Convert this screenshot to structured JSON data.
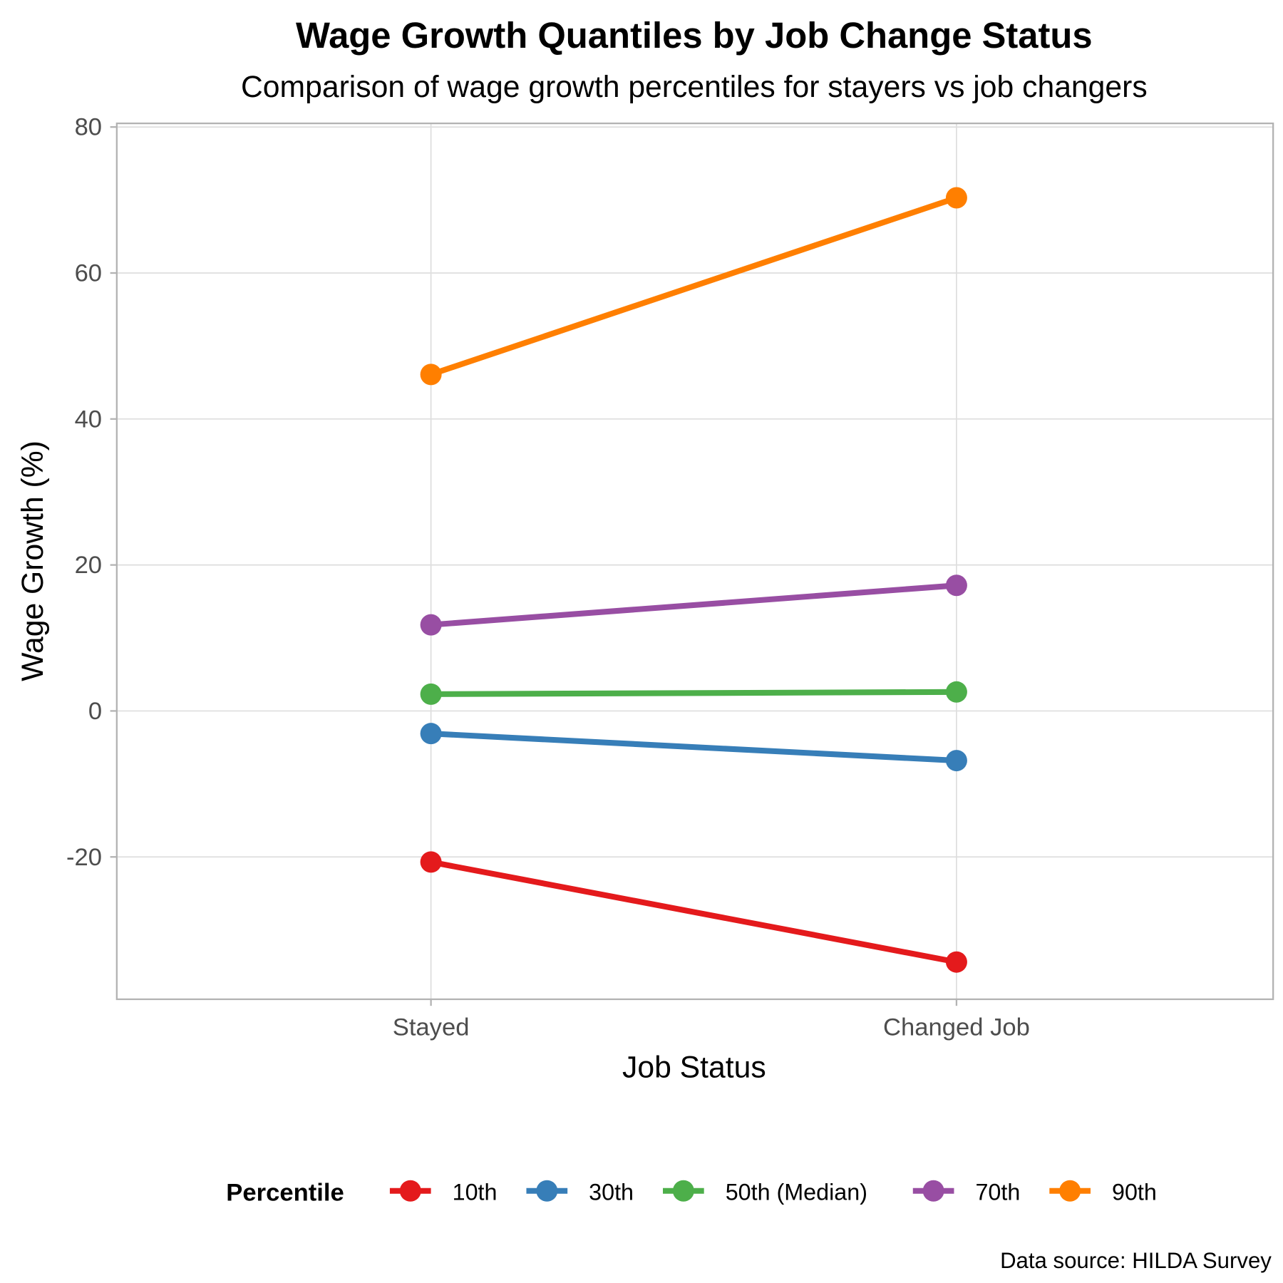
{
  "chart_data": {
    "type": "line",
    "title": "Wage Growth Quantiles by Job Change Status",
    "subtitle": "Comparison of wage growth percentiles for stayers vs job changers",
    "xlabel": "Job Status",
    "ylabel": "Wage Growth (%)",
    "categories": [
      "Stayed",
      "Changed Job"
    ],
    "ylim": [
      -39.5,
      80.5
    ],
    "yticks": [
      -20,
      0,
      20,
      40,
      60,
      80
    ],
    "grid": true,
    "legend": {
      "title": "Percentile",
      "placement": "bottom"
    },
    "series": [
      {
        "name": "10th",
        "color": "#E41A1C",
        "values": [
          -20.7,
          -34.4
        ]
      },
      {
        "name": "30th",
        "color": "#377EB8",
        "values": [
          -3.1,
          -6.8
        ]
      },
      {
        "name": "50th (Median)",
        "color": "#4DAF4A",
        "values": [
          2.3,
          2.6
        ]
      },
      {
        "name": "70th",
        "color": "#984EA3",
        "values": [
          11.8,
          17.2
        ]
      },
      {
        "name": "90th",
        "color": "#FF7F00",
        "values": [
          46.1,
          70.3
        ]
      }
    ],
    "caption": "Data source: HILDA Survey"
  }
}
